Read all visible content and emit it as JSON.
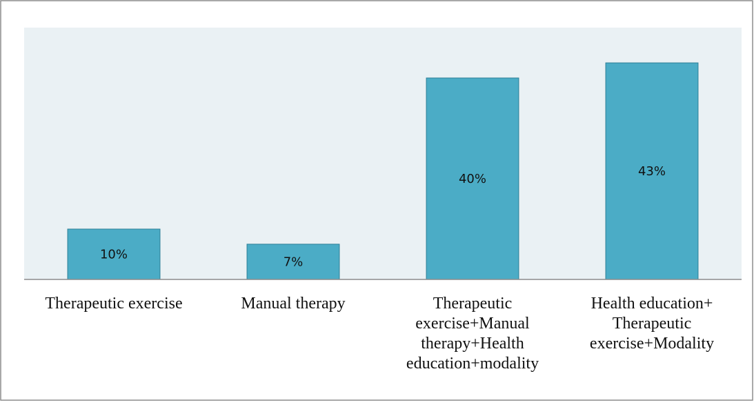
{
  "chart_data": {
    "type": "bar",
    "categories": [
      "Therapeutic exercise",
      "Manual therapy",
      "Therapeutic exercise+Manual therapy+Health education+modality",
      "Health education+ Therapeutic exercise+Modality"
    ],
    "values": [
      10,
      7,
      40,
      43
    ],
    "value_labels": [
      "10%",
      "7%",
      "40%",
      "43%"
    ],
    "color": "#4bacc6",
    "ylim": [
      0,
      50
    ]
  }
}
